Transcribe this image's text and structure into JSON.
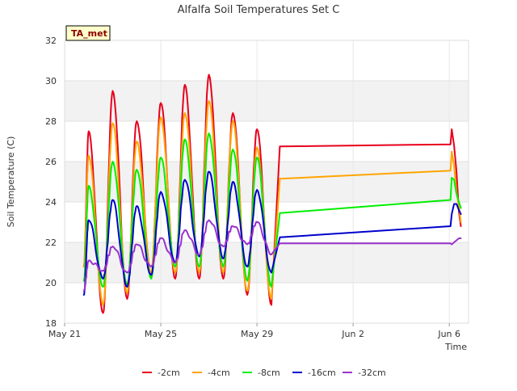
{
  "chart_data": {
    "type": "line",
    "title": "Alfalfa Soil Temperatures Set C",
    "xlabel": "Time",
    "ylabel": "Soil Temperature (C)",
    "site_tag": "TA_met",
    "xlim": [
      0,
      16.8
    ],
    "ylim": [
      18,
      32
    ],
    "y_ticks": [
      18,
      20,
      22,
      24,
      26,
      28,
      30,
      32
    ],
    "x_ticks": [
      {
        "day": 0,
        "label": "May 21"
      },
      {
        "day": 4,
        "label": "May 25"
      },
      {
        "day": 8,
        "label": "May 29"
      },
      {
        "day": 12,
        "label": "Jun 2"
      },
      {
        "day": 16,
        "label": "Jun 6"
      }
    ],
    "grid": true,
    "band_fill_color": "#f2f2f2",
    "legend_position": "bottom-center",
    "daily_pattern": {
      "start_day": 0.8,
      "end_day": 8.75,
      "peak_days": [
        1.0,
        2.0,
        3.0,
        4.0,
        5.0,
        6.0,
        7.0,
        8.0
      ],
      "trough_days": [
        1.6,
        2.6,
        3.6,
        4.6,
        5.6,
        6.6,
        7.6,
        8.6
      ]
    },
    "series": [
      {
        "name": "-2cm",
        "color": "#e8001c",
        "width": 2,
        "start": 20.8,
        "peaks": [
          27.5,
          29.5,
          28.0,
          28.9,
          29.8,
          30.3,
          28.4,
          27.6
        ],
        "troughs": [
          18.5,
          19.2,
          20.3,
          20.2,
          20.2,
          20.2,
          19.4,
          18.9
        ],
        "plateau_day": 8.95,
        "plateau_start": 26.75,
        "plateau_end_day": 16.05,
        "plateau_end": 26.85,
        "tail_points": [
          [
            16.1,
            27.6
          ],
          [
            16.2,
            26.8
          ],
          [
            16.3,
            25.5
          ],
          [
            16.4,
            23.5
          ],
          [
            16.48,
            22.8
          ]
        ]
      },
      {
        "name": "-4cm",
        "color": "#ffa500",
        "width": 2,
        "start": 20.8,
        "peaks": [
          26.3,
          27.9,
          27.0,
          28.2,
          28.4,
          29.0,
          28.0,
          26.7
        ],
        "troughs": [
          18.9,
          19.5,
          20.5,
          20.5,
          20.5,
          20.5,
          19.6,
          19.2
        ],
        "plateau_day": 8.95,
        "plateau_start": 25.15,
        "plateau_end_day": 16.05,
        "plateau_end": 25.55,
        "tail_points": [
          [
            16.1,
            26.5
          ],
          [
            16.2,
            25.8
          ],
          [
            16.3,
            24.5
          ],
          [
            16.4,
            23.8
          ],
          [
            16.48,
            23.0
          ]
        ]
      },
      {
        "name": "-8cm",
        "color": "#00ee00",
        "width": 2,
        "start": 20.1,
        "peaks": [
          24.8,
          26.0,
          25.6,
          26.2,
          27.1,
          27.4,
          26.6,
          26.2
        ],
        "troughs": [
          19.8,
          19.9,
          20.2,
          20.8,
          20.8,
          20.8,
          20.1,
          19.8
        ],
        "plateau_day": 8.95,
        "plateau_start": 23.45,
        "plateau_end_day": 16.05,
        "plateau_end": 24.1,
        "tail_points": [
          [
            16.1,
            25.2
          ],
          [
            16.2,
            25.1
          ],
          [
            16.3,
            24.4
          ],
          [
            16.4,
            24.0
          ],
          [
            16.48,
            23.7
          ]
        ]
      },
      {
        "name": "-16cm",
        "color": "#0000cc",
        "width": 2,
        "start": 19.4,
        "peaks": [
          23.1,
          24.1,
          23.8,
          24.5,
          25.1,
          25.5,
          25.0,
          24.6
        ],
        "troughs": [
          20.2,
          19.8,
          20.4,
          21.0,
          21.3,
          21.2,
          20.8,
          20.5
        ],
        "plateau_day": 8.95,
        "plateau_start": 22.25,
        "plateau_end_day": 16.05,
        "plateau_end": 22.8,
        "tail_points": [
          [
            16.1,
            23.4
          ],
          [
            16.2,
            23.9
          ],
          [
            16.3,
            23.9
          ],
          [
            16.4,
            23.6
          ],
          [
            16.48,
            23.4
          ]
        ]
      },
      {
        "name": "-32cm",
        "color": "#9932cc",
        "width": 2,
        "start": 19.6,
        "peaks": [
          21.1,
          21.8,
          21.9,
          22.2,
          22.6,
          23.1,
          22.8,
          23.0
        ],
        "troughs": [
          20.6,
          20.5,
          20.8,
          21.0,
          21.4,
          21.8,
          21.9,
          21.4
        ],
        "plateau_day": 8.95,
        "plateau_start": 21.95,
        "plateau_end_day": 16.05,
        "plateau_end": 21.95,
        "tail_points": [
          [
            16.1,
            21.9
          ],
          [
            16.2,
            22.0
          ],
          [
            16.3,
            22.1
          ],
          [
            16.4,
            22.2
          ],
          [
            16.48,
            22.2
          ]
        ]
      }
    ]
  }
}
